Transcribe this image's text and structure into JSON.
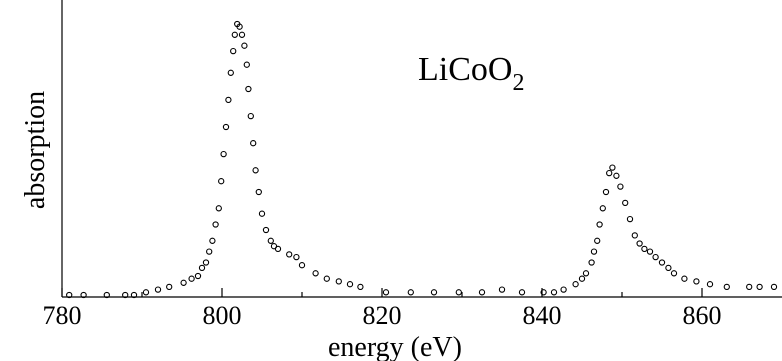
{
  "chart_data": {
    "type": "scatter",
    "xlabel": "energy (eV)",
    "ylabel": "absorption",
    "xlim": [
      780,
      870
    ],
    "ylim": [
      0,
      1.03
    ],
    "x_ticks": [
      780,
      800,
      820,
      840,
      860
    ],
    "x_tick_labels": [
      "780",
      "800",
      "820",
      "840",
      "860"
    ],
    "y_ticks_shown": false,
    "grid": false,
    "legend": "none",
    "annotation": {
      "text": "LiCoO",
      "subscript": "2"
    },
    "series": [
      {
        "marker": "open-circle",
        "x": [
          780.9,
          782.7,
          785.6,
          787.9,
          789.0,
          790.5,
          792.0,
          793.4,
          795.2,
          796.2,
          797.0,
          797.5,
          798.0,
          798.4,
          798.8,
          799.2,
          799.6,
          799.9,
          800.2,
          800.5,
          800.8,
          801.1,
          801.4,
          801.6,
          801.9,
          802.2,
          802.5,
          802.8,
          803.1,
          803.3,
          803.6,
          803.9,
          804.2,
          804.6,
          805.0,
          805.5,
          806.1,
          806.5,
          807.0,
          808.4,
          809.3,
          810.0,
          811.7,
          813.1,
          814.6,
          816.0,
          817.3,
          820.5,
          823.6,
          826.5,
          829.6,
          832.5,
          835.0,
          837.5,
          840.2,
          841.5,
          842.7,
          844.2,
          845.0,
          845.5,
          846.2,
          846.5,
          846.9,
          847.2,
          847.6,
          848.0,
          848.4,
          848.8,
          849.3,
          849.8,
          850.4,
          851.0,
          851.6,
          852.2,
          852.8,
          853.5,
          854.2,
          855.0,
          855.8,
          856.5,
          857.8,
          859.3,
          861.0,
          863.1,
          865.9,
          867.2,
          869.0
        ],
        "y": [
          0.0,
          0.0,
          0.0,
          0.0,
          0.0,
          0.01,
          0.02,
          0.03,
          0.045,
          0.06,
          0.07,
          0.1,
          0.12,
          0.16,
          0.2,
          0.26,
          0.32,
          0.42,
          0.52,
          0.62,
          0.72,
          0.82,
          0.9,
          0.96,
          1.0,
          0.99,
          0.96,
          0.92,
          0.85,
          0.76,
          0.66,
          0.56,
          0.46,
          0.38,
          0.3,
          0.24,
          0.2,
          0.18,
          0.17,
          0.15,
          0.14,
          0.11,
          0.08,
          0.06,
          0.05,
          0.04,
          0.03,
          0.01,
          0.01,
          0.01,
          0.01,
          0.01,
          0.02,
          0.01,
          0.01,
          0.01,
          0.02,
          0.04,
          0.06,
          0.08,
          0.12,
          0.16,
          0.2,
          0.26,
          0.32,
          0.38,
          0.45,
          0.47,
          0.44,
          0.4,
          0.34,
          0.28,
          0.22,
          0.19,
          0.17,
          0.16,
          0.14,
          0.12,
          0.1,
          0.08,
          0.06,
          0.05,
          0.04,
          0.03,
          0.03,
          0.03,
          0.03
        ]
      }
    ]
  }
}
